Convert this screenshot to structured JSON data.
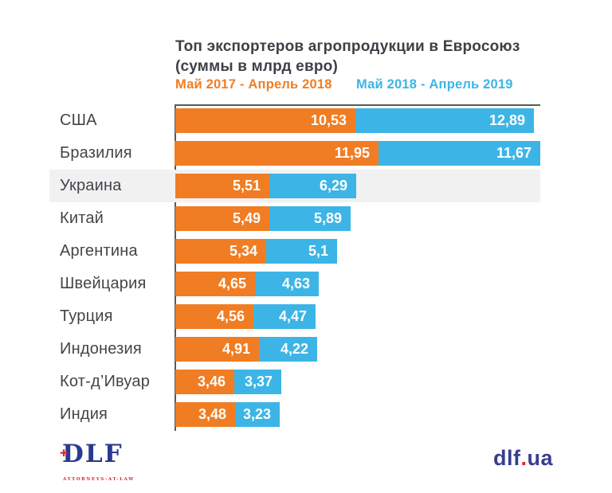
{
  "header": {
    "title_line1": "Топ экспортеров агропродукции в Евросоюз",
    "title_line2": "(суммы в млрд евро)",
    "legend": [
      {
        "label": "Май 2017 - Апрель 2018",
        "color": "#f07d23"
      },
      {
        "label": "Май 2018 - Апрель 2019",
        "color": "#3cb5e6"
      }
    ]
  },
  "chart_data": {
    "type": "bar",
    "orientation": "horizontal",
    "title": "Топ экспортеров агропродукции в Евросоюз (суммы в млрд евро)",
    "unit": "млрд евро",
    "legend_position": "top",
    "grid": false,
    "categories": [
      "США",
      "Бразилия",
      "Украина",
      "Китай",
      "Аргентина",
      "Швейцария",
      "Турция",
      "Индонезия",
      "Кот-д’Ивуар",
      "Индия"
    ],
    "series": [
      {
        "name": "Май 2017 - Апрель 2018",
        "color": "#f07d23",
        "values": [
          10.53,
          11.95,
          5.51,
          5.49,
          5.34,
          4.65,
          4.56,
          4.91,
          3.46,
          3.48
        ],
        "labels": [
          "10,53",
          "11,95",
          "5,51",
          "5,49",
          "5,34",
          "4,65",
          "4,56",
          "4,91",
          "3,46",
          "3,48"
        ]
      },
      {
        "name": "Май 2018 - Апрель 2019",
        "color": "#3cb5e6",
        "values": [
          12.89,
          11.67,
          6.29,
          5.89,
          5.1,
          4.63,
          4.47,
          4.22,
          3.37,
          3.23
        ],
        "labels": [
          "12,89",
          "11,67",
          "6,29",
          "5,89",
          "5,1",
          "4,63",
          "4,47",
          "4,22",
          "3,37",
          "3,23"
        ]
      }
    ],
    "highlighted_category": "Украина",
    "note": "each series scaled independently; bars stacked side by side per country"
  },
  "footer": {
    "logo_text": "DLF",
    "logo_cross": "✚",
    "logo_subtext": "ATTORNEYS-AT-LAW",
    "site_pre": "dlf",
    "site_dot": ".",
    "site_post": "ua"
  },
  "colors": {
    "series1": "#f07d23",
    "series2": "#3cb5e6",
    "title_text": "#3d4046",
    "category_text": "#43454a",
    "axis_line": "#58595b",
    "highlight_band": "#f1f1f2",
    "logo_navy": "#2b3a90",
    "logo_red": "#e4252b"
  }
}
